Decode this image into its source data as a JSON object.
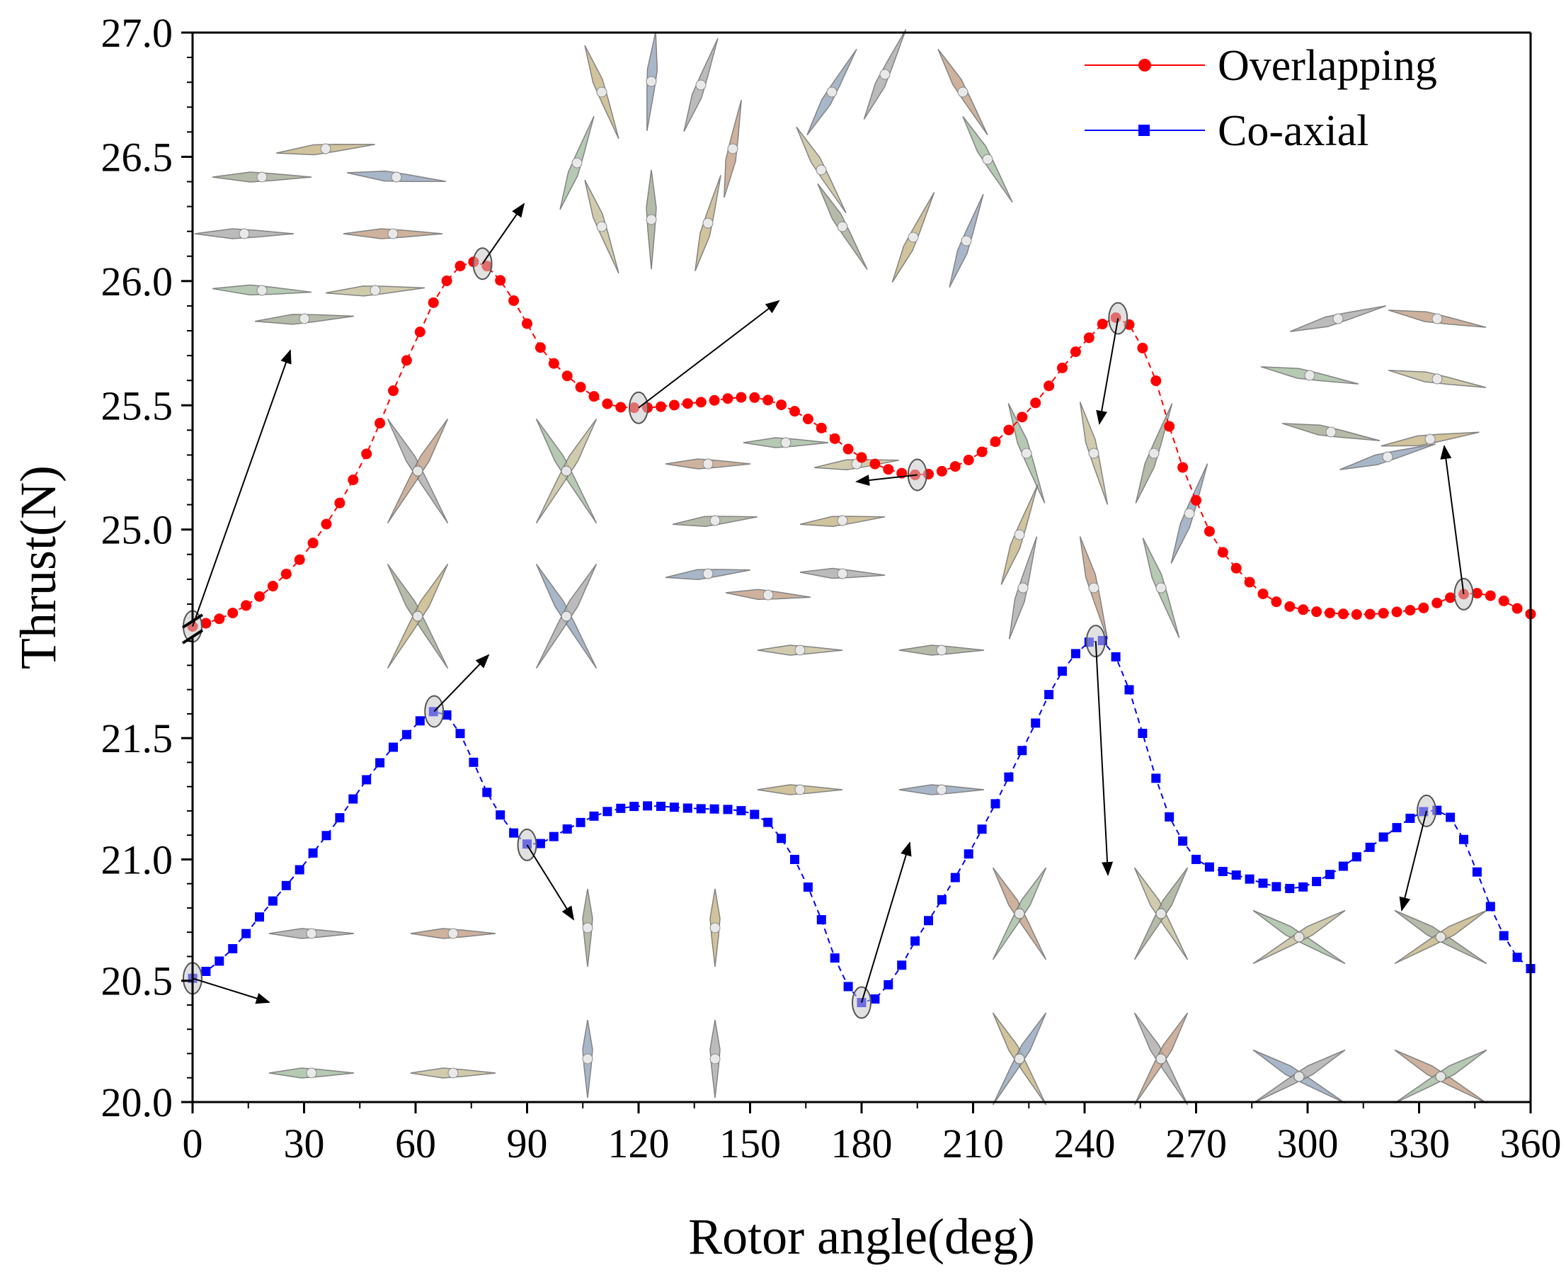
{
  "chart_data": {
    "type": "line",
    "title": "",
    "xlabel": "Rotor angle(deg)",
    "ylabel": "Thrust(N)",
    "xlim": [
      0,
      360
    ],
    "x_ticks": [
      0,
      30,
      60,
      90,
      120,
      150,
      180,
      210,
      240,
      270,
      300,
      330,
      360
    ],
    "x_tick_labels": [
      "0",
      "30",
      "60",
      "90",
      "120",
      "150",
      "180",
      "210",
      "240",
      "270",
      "300",
      "330",
      "360"
    ],
    "y_axis_break": true,
    "y_segments": [
      {
        "name": "lower",
        "range": [
          20.0,
          21.95
        ],
        "ticks": [
          20.0,
          20.5,
          21.0,
          21.5
        ],
        "tick_labels": [
          "20.0",
          "20.5",
          "21.0",
          "21.5"
        ]
      },
      {
        "name": "upper",
        "range": [
          24.6,
          27.0
        ],
        "ticks": [
          25.0,
          25.5,
          26.0,
          26.5,
          27.0
        ],
        "tick_labels": [
          "25.0",
          "25.5",
          "26.0",
          "26.5",
          "27.0"
        ]
      }
    ],
    "legend": {
      "position": "top-right",
      "entries": [
        "Overlapping",
        "Co-axial"
      ]
    },
    "series": [
      {
        "name": "Overlapping",
        "color": "#ff0000",
        "marker": "circle",
        "segment": "upper",
        "points": [
          [
            0,
            24.61
          ],
          [
            15,
            24.7
          ],
          [
            30,
            24.9
          ],
          [
            45,
            25.25
          ],
          [
            60,
            25.75
          ],
          [
            70,
            26.03
          ],
          [
            78,
            26.07
          ],
          [
            85,
            25.95
          ],
          [
            95,
            25.7
          ],
          [
            110,
            25.52
          ],
          [
            120,
            25.49
          ],
          [
            135,
            25.51
          ],
          [
            152,
            25.53
          ],
          [
            165,
            25.45
          ],
          [
            180,
            25.29
          ],
          [
            195,
            25.22
          ],
          [
            210,
            25.29
          ],
          [
            225,
            25.48
          ],
          [
            240,
            25.75
          ],
          [
            250,
            25.85
          ],
          [
            258,
            25.65
          ],
          [
            265,
            25.3
          ],
          [
            275,
            24.95
          ],
          [
            290,
            24.72
          ],
          [
            310,
            24.66
          ],
          [
            330,
            24.68
          ],
          [
            342,
            24.74
          ],
          [
            350,
            24.73
          ],
          [
            360,
            24.66
          ]
        ],
        "highlighted_points": [
          [
            0,
            24.61
          ],
          [
            78,
            26.07
          ],
          [
            120,
            25.49
          ],
          [
            195,
            25.22
          ],
          [
            249,
            25.85
          ],
          [
            342,
            24.74
          ]
        ]
      },
      {
        "name": "Co-axial",
        "color": "#0000ff",
        "marker": "square",
        "segment": "lower",
        "points": [
          [
            0,
            20.51
          ],
          [
            10,
            20.62
          ],
          [
            20,
            20.8
          ],
          [
            30,
            20.98
          ],
          [
            40,
            21.18
          ],
          [
            50,
            21.39
          ],
          [
            58,
            21.52
          ],
          [
            65,
            21.61
          ],
          [
            70,
            21.57
          ],
          [
            75,
            21.42
          ],
          [
            80,
            21.25
          ],
          [
            87,
            21.1
          ],
          [
            92,
            21.06
          ],
          [
            100,
            21.12
          ],
          [
            110,
            21.19
          ],
          [
            120,
            21.22
          ],
          [
            135,
            21.21
          ],
          [
            148,
            21.2
          ],
          [
            155,
            21.15
          ],
          [
            162,
            21.0
          ],
          [
            168,
            20.8
          ],
          [
            174,
            20.55
          ],
          [
            180,
            20.41
          ],
          [
            187,
            20.48
          ],
          [
            195,
            20.68
          ],
          [
            205,
            20.92
          ],
          [
            215,
            21.2
          ],
          [
            225,
            21.5
          ],
          [
            233,
            21.75
          ],
          [
            240,
            21.88
          ],
          [
            245,
            21.9
          ],
          [
            250,
            21.78
          ],
          [
            256,
            21.5
          ],
          [
            262,
            21.2
          ],
          [
            270,
            21.0
          ],
          [
            282,
            20.93
          ],
          [
            296,
            20.88
          ],
          [
            305,
            20.93
          ],
          [
            315,
            21.03
          ],
          [
            325,
            21.14
          ],
          [
            332,
            21.2
          ],
          [
            338,
            21.18
          ],
          [
            343,
            21.05
          ],
          [
            348,
            20.85
          ],
          [
            353,
            20.68
          ],
          [
            358,
            20.57
          ],
          [
            360,
            20.55
          ]
        ],
        "highlighted_points": [
          [
            0,
            20.51
          ],
          [
            65,
            21.61
          ],
          [
            90,
            21.06
          ],
          [
            180,
            20.41
          ],
          [
            243,
            21.9
          ],
          [
            332,
            21.2
          ]
        ]
      }
    ],
    "annotations": "Rotor blade configuration illustrations with arrows pointing to highlighted data points"
  }
}
